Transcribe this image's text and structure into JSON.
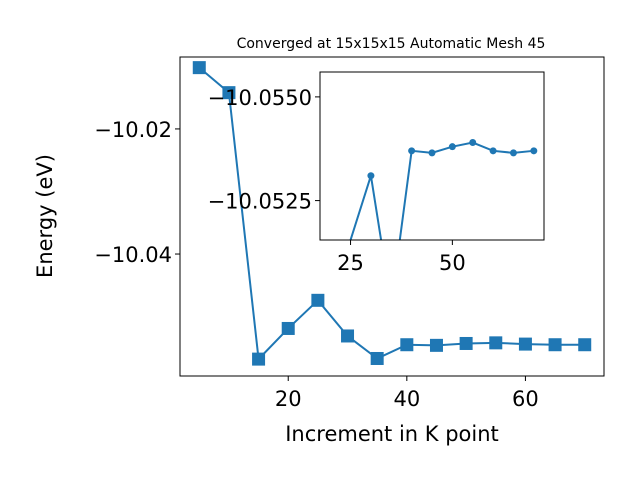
{
  "chart_data": [
    {
      "type": "line",
      "title": "Converged at 15x15x15 Automatic Mesh 45",
      "xlabel": "Increment in K point",
      "ylabel": "Energy (eV)",
      "xlim": [
        1.75,
        73.25
      ],
      "ylim": [
        -10.0595,
        -10.0085
      ],
      "xticks": [
        20,
        40,
        60
      ],
      "yticks": [
        -10.04,
        -10.02
      ],
      "ytick_labels": [
        "−10.04",
        "−10.02"
      ],
      "grid": false,
      "marker": "square",
      "color": "#1f77b4",
      "series": [
        {
          "x": [
            5,
            10,
            15,
            20,
            25,
            30,
            35,
            40,
            45,
            50,
            55,
            60,
            65,
            70
          ],
          "y": [
            -10.0102,
            -10.0142,
            -10.0568,
            -10.0519,
            -10.0474,
            -10.0531,
            -10.0567,
            -10.0545,
            -10.0546,
            -10.0543,
            -10.0542,
            -10.0544,
            -10.0545,
            -10.0545
          ]
        }
      ]
    },
    {
      "type": "line",
      "title": "",
      "xlabel": "",
      "ylabel": "",
      "xlim": [
        17.5,
        72.5
      ],
      "ylim": [
        -10.05155,
        -10.0556
      ],
      "xticks": [
        25,
        50
      ],
      "yticks": [
        -10.055,
        -10.0525
      ],
      "ytick_labels": [
        "−10.0550",
        "−10.0525"
      ],
      "grid": false,
      "marker": "circle",
      "color": "#1f77b4",
      "series": [
        {
          "x": [
            20,
            30,
            35,
            40,
            45,
            50,
            55,
            60,
            65,
            70
          ],
          "y": [
            -10.05,
            -10.0531,
            -10.05,
            -10.0537,
            -10.05365,
            -10.0538,
            -10.0539,
            -10.0537,
            -10.05365,
            -10.0537
          ]
        }
      ]
    }
  ]
}
